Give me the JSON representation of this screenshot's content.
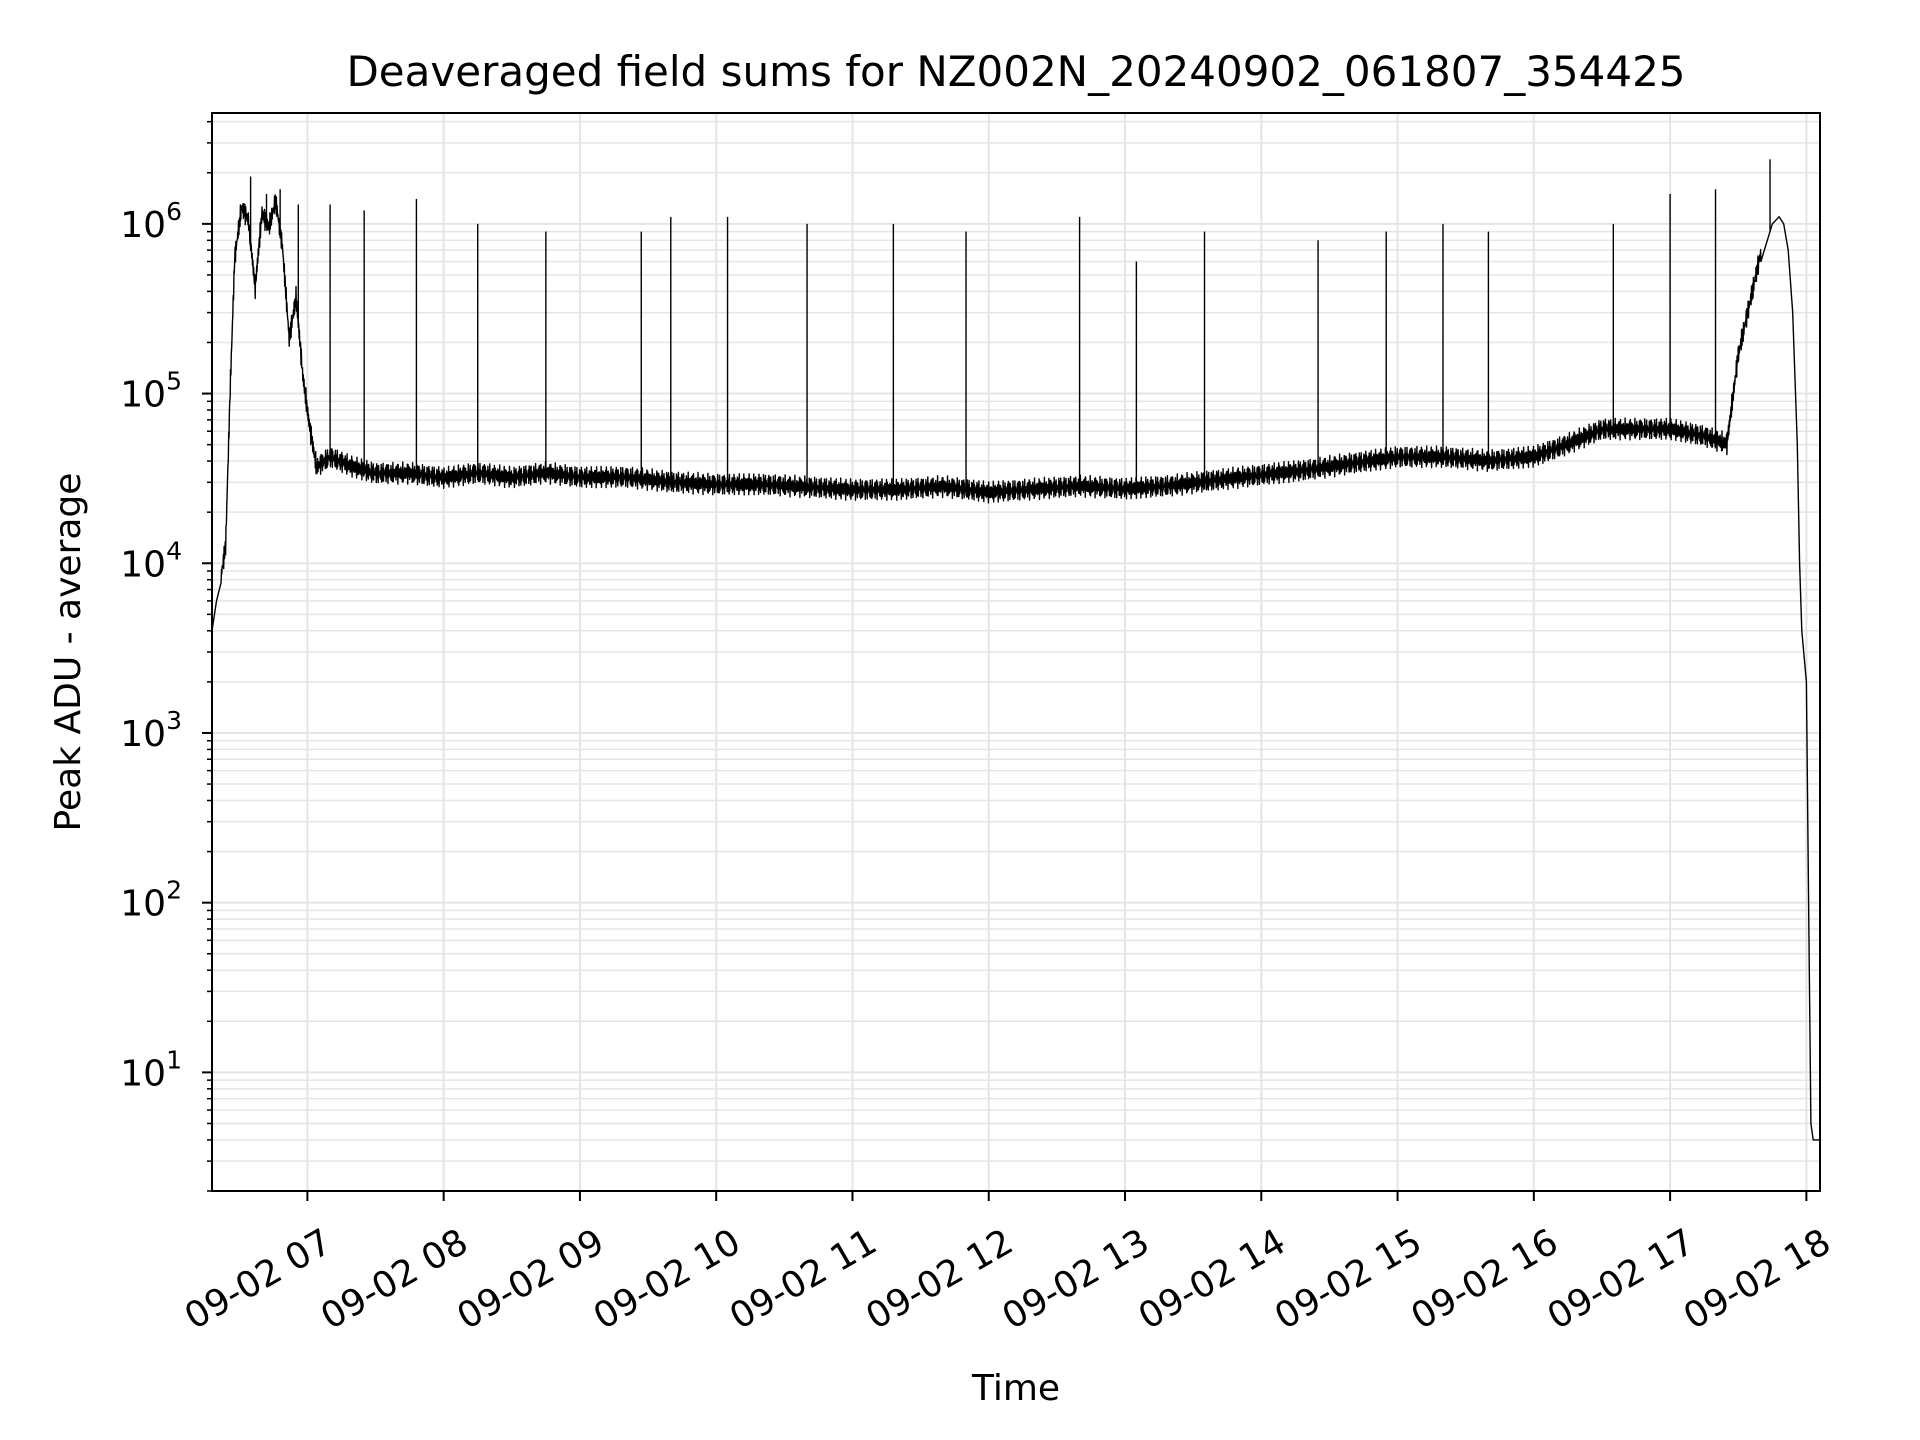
{
  "chart_data": {
    "type": "line",
    "title": "Deaveraged field sums for NZ002N_20240902_061807_354425",
    "xlabel": "Time",
    "ylabel": "Peak ADU - average",
    "x_axis": {
      "kind": "time",
      "date": "2024-09-02",
      "range": [
        "06:18",
        "18:06"
      ]
    },
    "y_axis": {
      "scale": "log",
      "range": [
        2,
        4500000
      ]
    },
    "grid": {
      "major": true,
      "minor_y": true,
      "color": "#e5e5e5"
    },
    "legend": "none",
    "line_color": "#000000",
    "x_ticks": [
      {
        "time": "07:00",
        "label": "09-02 07"
      },
      {
        "time": "08:00",
        "label": "09-02 08"
      },
      {
        "time": "09:00",
        "label": "09-02 09"
      },
      {
        "time": "10:00",
        "label": "09-02 10"
      },
      {
        "time": "11:00",
        "label": "09-02 11"
      },
      {
        "time": "12:00",
        "label": "09-02 12"
      },
      {
        "time": "13:00",
        "label": "09-02 13"
      },
      {
        "time": "14:00",
        "label": "09-02 14"
      },
      {
        "time": "15:00",
        "label": "09-02 15"
      },
      {
        "time": "16:00",
        "label": "09-02 16"
      },
      {
        "time": "17:00",
        "label": "09-02 17"
      },
      {
        "time": "18:00",
        "label": "09-02 18"
      }
    ],
    "y_ticks": [
      {
        "value": 10,
        "base": "10",
        "exp": "1"
      },
      {
        "value": 100,
        "base": "10",
        "exp": "2"
      },
      {
        "value": 1000,
        "base": "10",
        "exp": "3"
      },
      {
        "value": 10000,
        "base": "10",
        "exp": "4"
      },
      {
        "value": 100000,
        "base": "10",
        "exp": "5"
      },
      {
        "value": 1000000,
        "base": "10",
        "exp": "6"
      }
    ],
    "series": [
      {
        "points": [
          [
            "06:18",
            4000
          ],
          [
            "06:20",
            6000
          ],
          [
            "06:22",
            8000
          ],
          [
            "06:24",
            12000
          ],
          [
            "06:26",
            100000
          ],
          [
            "06:28",
            600000
          ],
          [
            "06:31",
            1200000
          ],
          [
            "06:34",
            1000000
          ],
          [
            "06:37",
            400000
          ],
          [
            "06:40",
            1100000
          ],
          [
            "06:43",
            900000
          ],
          [
            "06:46",
            1300000
          ],
          [
            "06:49",
            700000
          ],
          [
            "06:52",
            200000
          ],
          [
            "06:55",
            350000
          ],
          [
            "06:58",
            120000
          ],
          [
            "07:01",
            60000
          ],
          [
            "07:04",
            35000
          ],
          [
            "07:10",
            40000
          ],
          [
            "07:20",
            35000
          ],
          [
            "07:30",
            32000
          ],
          [
            "07:45",
            32000
          ],
          [
            "08:00",
            30000
          ],
          [
            "08:15",
            32000
          ],
          [
            "08:30",
            30000
          ],
          [
            "08:45",
            32000
          ],
          [
            "09:00",
            30000
          ],
          [
            "09:20",
            30000
          ],
          [
            "09:40",
            28000
          ],
          [
            "10:00",
            27000
          ],
          [
            "10:20",
            27000
          ],
          [
            "10:40",
            26000
          ],
          [
            "11:00",
            25000
          ],
          [
            "11:20",
            25000
          ],
          [
            "11:40",
            26000
          ],
          [
            "12:00",
            24000
          ],
          [
            "12:20",
            25000
          ],
          [
            "12:40",
            26000
          ],
          [
            "13:00",
            25000
          ],
          [
            "13:20",
            26000
          ],
          [
            "13:40",
            28000
          ],
          [
            "14:00",
            30000
          ],
          [
            "14:20",
            32000
          ],
          [
            "14:40",
            35000
          ],
          [
            "15:00",
            38000
          ],
          [
            "15:20",
            38000
          ],
          [
            "15:40",
            36000
          ],
          [
            "16:00",
            38000
          ],
          [
            "16:15",
            45000
          ],
          [
            "16:30",
            55000
          ],
          [
            "16:45",
            55000
          ],
          [
            "17:00",
            55000
          ],
          [
            "17:15",
            50000
          ],
          [
            "17:25",
            45000
          ],
          [
            "17:30",
            150000
          ],
          [
            "17:35",
            300000
          ],
          [
            "17:40",
            600000
          ],
          [
            "17:45",
            1000000
          ],
          [
            "17:48",
            1100000
          ],
          [
            "17:50",
            1000000
          ],
          [
            "17:52",
            700000
          ],
          [
            "17:54",
            300000
          ],
          [
            "17:56",
            50000
          ],
          [
            "17:57",
            10000
          ],
          [
            "17:58",
            4000
          ],
          [
            "18:00",
            2000
          ],
          [
            "18:01",
            100
          ],
          [
            "18:02",
            5
          ],
          [
            "18:03",
            4
          ],
          [
            "18:06",
            4
          ]
        ],
        "spikes": [
          [
            "06:35",
            1900000
          ],
          [
            "06:42",
            1500000
          ],
          [
            "06:48",
            1600000
          ],
          [
            "06:56",
            1300000
          ],
          [
            "07:10",
            1300000
          ],
          [
            "07:25",
            1200000
          ],
          [
            "07:48",
            1400000
          ],
          [
            "08:15",
            1000000
          ],
          [
            "08:45",
            900000
          ],
          [
            "09:27",
            900000
          ],
          [
            "09:40",
            1100000
          ],
          [
            "10:05",
            1100000
          ],
          [
            "10:40",
            1000000
          ],
          [
            "11:18",
            1000000
          ],
          [
            "11:50",
            900000
          ],
          [
            "12:40",
            1100000
          ],
          [
            "13:05",
            600000
          ],
          [
            "13:35",
            900000
          ],
          [
            "14:25",
            800000
          ],
          [
            "14:55",
            900000
          ],
          [
            "15:20",
            1000000
          ],
          [
            "15:40",
            900000
          ],
          [
            "16:35",
            1000000
          ],
          [
            "17:00",
            1500000
          ],
          [
            "17:20",
            1600000
          ],
          [
            "17:44",
            2400000
          ]
        ]
      }
    ]
  }
}
